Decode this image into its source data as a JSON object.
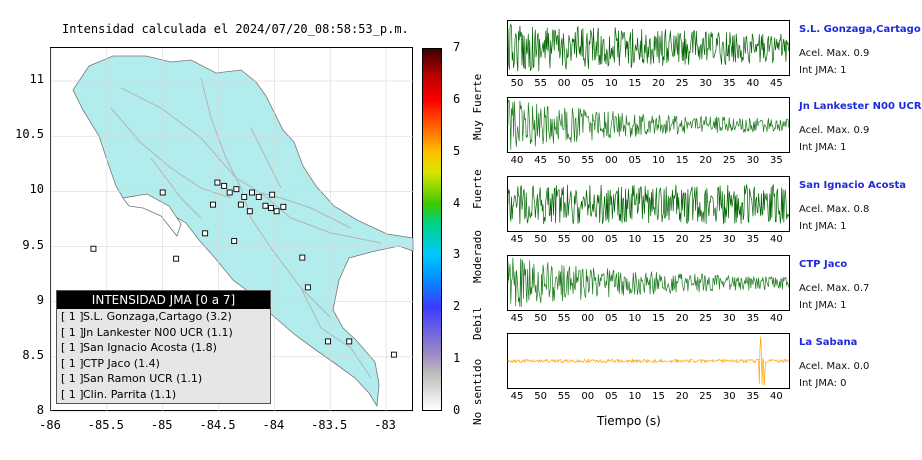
{
  "chart_data": [
    {
      "type": "heatmap",
      "title": "Intensidad calculada el 2024/07/20_08:58:53_p.m.",
      "xticks": [
        "-86",
        "-85.5",
        "-85",
        "-84.5",
        "-84",
        "-83.5",
        "-83"
      ],
      "yticks": [
        "11",
        "10.5",
        "10",
        "9.5",
        "9",
        "8.5",
        "8"
      ],
      "xlim": [
        -86,
        -82.75
      ],
      "ylim": [
        8,
        11.3
      ],
      "stations": [
        {
          "lon": -84.51,
          "lat": 10.08
        },
        {
          "lon": -84.45,
          "lat": 10.05
        },
        {
          "lon": -84.4,
          "lat": 9.99
        },
        {
          "lon": -84.34,
          "lat": 10.02
        },
        {
          "lon": -84.27,
          "lat": 9.95
        },
        {
          "lon": -84.2,
          "lat": 9.99
        },
        {
          "lon": -84.14,
          "lat": 9.95
        },
        {
          "lon": -84.08,
          "lat": 9.87
        },
        {
          "lon": -84.03,
          "lat": 9.85
        },
        {
          "lon": -83.92,
          "lat": 9.86
        },
        {
          "lon": -84.3,
          "lat": 9.88
        },
        {
          "lon": -84.22,
          "lat": 9.82
        },
        {
          "lon": -84.02,
          "lat": 9.97
        },
        {
          "lon": -83.98,
          "lat": 9.82
        },
        {
          "lon": -84.55,
          "lat": 9.88
        },
        {
          "lon": -84.62,
          "lat": 9.62
        },
        {
          "lon": -85.0,
          "lat": 9.99
        },
        {
          "lon": -85.62,
          "lat": 9.48
        },
        {
          "lon": -84.88,
          "lat": 9.39
        },
        {
          "lon": -84.36,
          "lat": 9.55
        },
        {
          "lon": -83.75,
          "lat": 9.4
        },
        {
          "lon": -83.7,
          "lat": 9.13
        },
        {
          "lon": -83.52,
          "lat": 8.64
        },
        {
          "lon": -83.33,
          "lat": 8.64
        },
        {
          "lon": -82.93,
          "lat": 8.52
        }
      ],
      "legend": {
        "title": "INTENSIDAD JMA [0 a 7]",
        "entries": [
          {
            "box": "[ 1 ]",
            "label": "S.L. Gonzaga,Cartago (3.2)"
          },
          {
            "box": "[ 1 ]",
            "label": "Jn Lankester N00 UCR (1.1)"
          },
          {
            "box": "[ 1 ]",
            "label": "San Ignacio Acosta (1.8)"
          },
          {
            "box": "[ 1 ]",
            "label": "CTP Jaco (1.4)"
          },
          {
            "box": "[ 1 ]",
            "label": "San Ramon UCR (1.1)"
          },
          {
            "box": "[ 1 ]",
            "label": "Clin. Parrita (1.1)"
          }
        ]
      },
      "colorbar": {
        "range": [
          0,
          7
        ],
        "ticks": [
          "0",
          "1",
          "2",
          "3",
          "4",
          "5",
          "6",
          "7"
        ],
        "labels": [
          "No sentido",
          "Debil",
          "Moderado",
          "Fuerte",
          "Muy Fuerte"
        ]
      },
      "colors": {
        "land": "#b2ecec",
        "station": "#ffffff",
        "roads": "#b4b4b4"
      }
    },
    {
      "type": "line",
      "xlabel": "Tiempo (s)",
      "series": [
        {
          "name": "S.L. Gonzaga,Cartago",
          "acel_label": "Acel. Max. 0.9",
          "int_label": "Int JMA: 1",
          "color": "#006400",
          "ticks": [
            "50",
            "55",
            "00",
            "05",
            "10",
            "15",
            "20",
            "25",
            "30",
            "35",
            "40",
            "45"
          ],
          "first_tick": 50,
          "count": 12,
          "profile": "strong"
        },
        {
          "name": "Jn Lankester N00 UCR",
          "acel_label": "Acel. Max. 0.9",
          "int_label": "Int JMA: 1",
          "color": "#1f7a1f",
          "ticks": [
            "40",
            "45",
            "50",
            "55",
            "00",
            "05",
            "10",
            "15",
            "20",
            "25",
            "30",
            "35"
          ],
          "first_tick": 40,
          "count": 12,
          "profile": "decay"
        },
        {
          "name": "San Ignacio Acosta",
          "acel_label": "Acel. Max. 0.8",
          "int_label": "Int JMA: 1",
          "color": "#006400",
          "ticks": [
            "45",
            "50",
            "55",
            "00",
            "05",
            "10",
            "15",
            "20",
            "25",
            "30",
            "35",
            "40"
          ],
          "first_tick": 45,
          "count": 12,
          "profile": "steady"
        },
        {
          "name": "CTP Jaco",
          "acel_label": "Acel. Max. 0.7",
          "int_label": "Int JMA: 1",
          "color": "#1f7a1f",
          "ticks": [
            "45",
            "50",
            "55",
            "00",
            "05",
            "10",
            "15",
            "20",
            "25",
            "30",
            "35",
            "40"
          ],
          "first_tick": 45,
          "count": 12,
          "profile": "decay"
        },
        {
          "name": "La Sabana",
          "acel_label": "Acel. Max. 0.0",
          "int_label": "Int JMA: 0",
          "color": "#ffa500",
          "ticks": [
            "45",
            "50",
            "55",
            "00",
            "05",
            "10",
            "15",
            "20",
            "25",
            "30",
            "35",
            "40"
          ],
          "first_tick": 45,
          "count": 12,
          "profile": "quiet"
        }
      ]
    }
  ]
}
